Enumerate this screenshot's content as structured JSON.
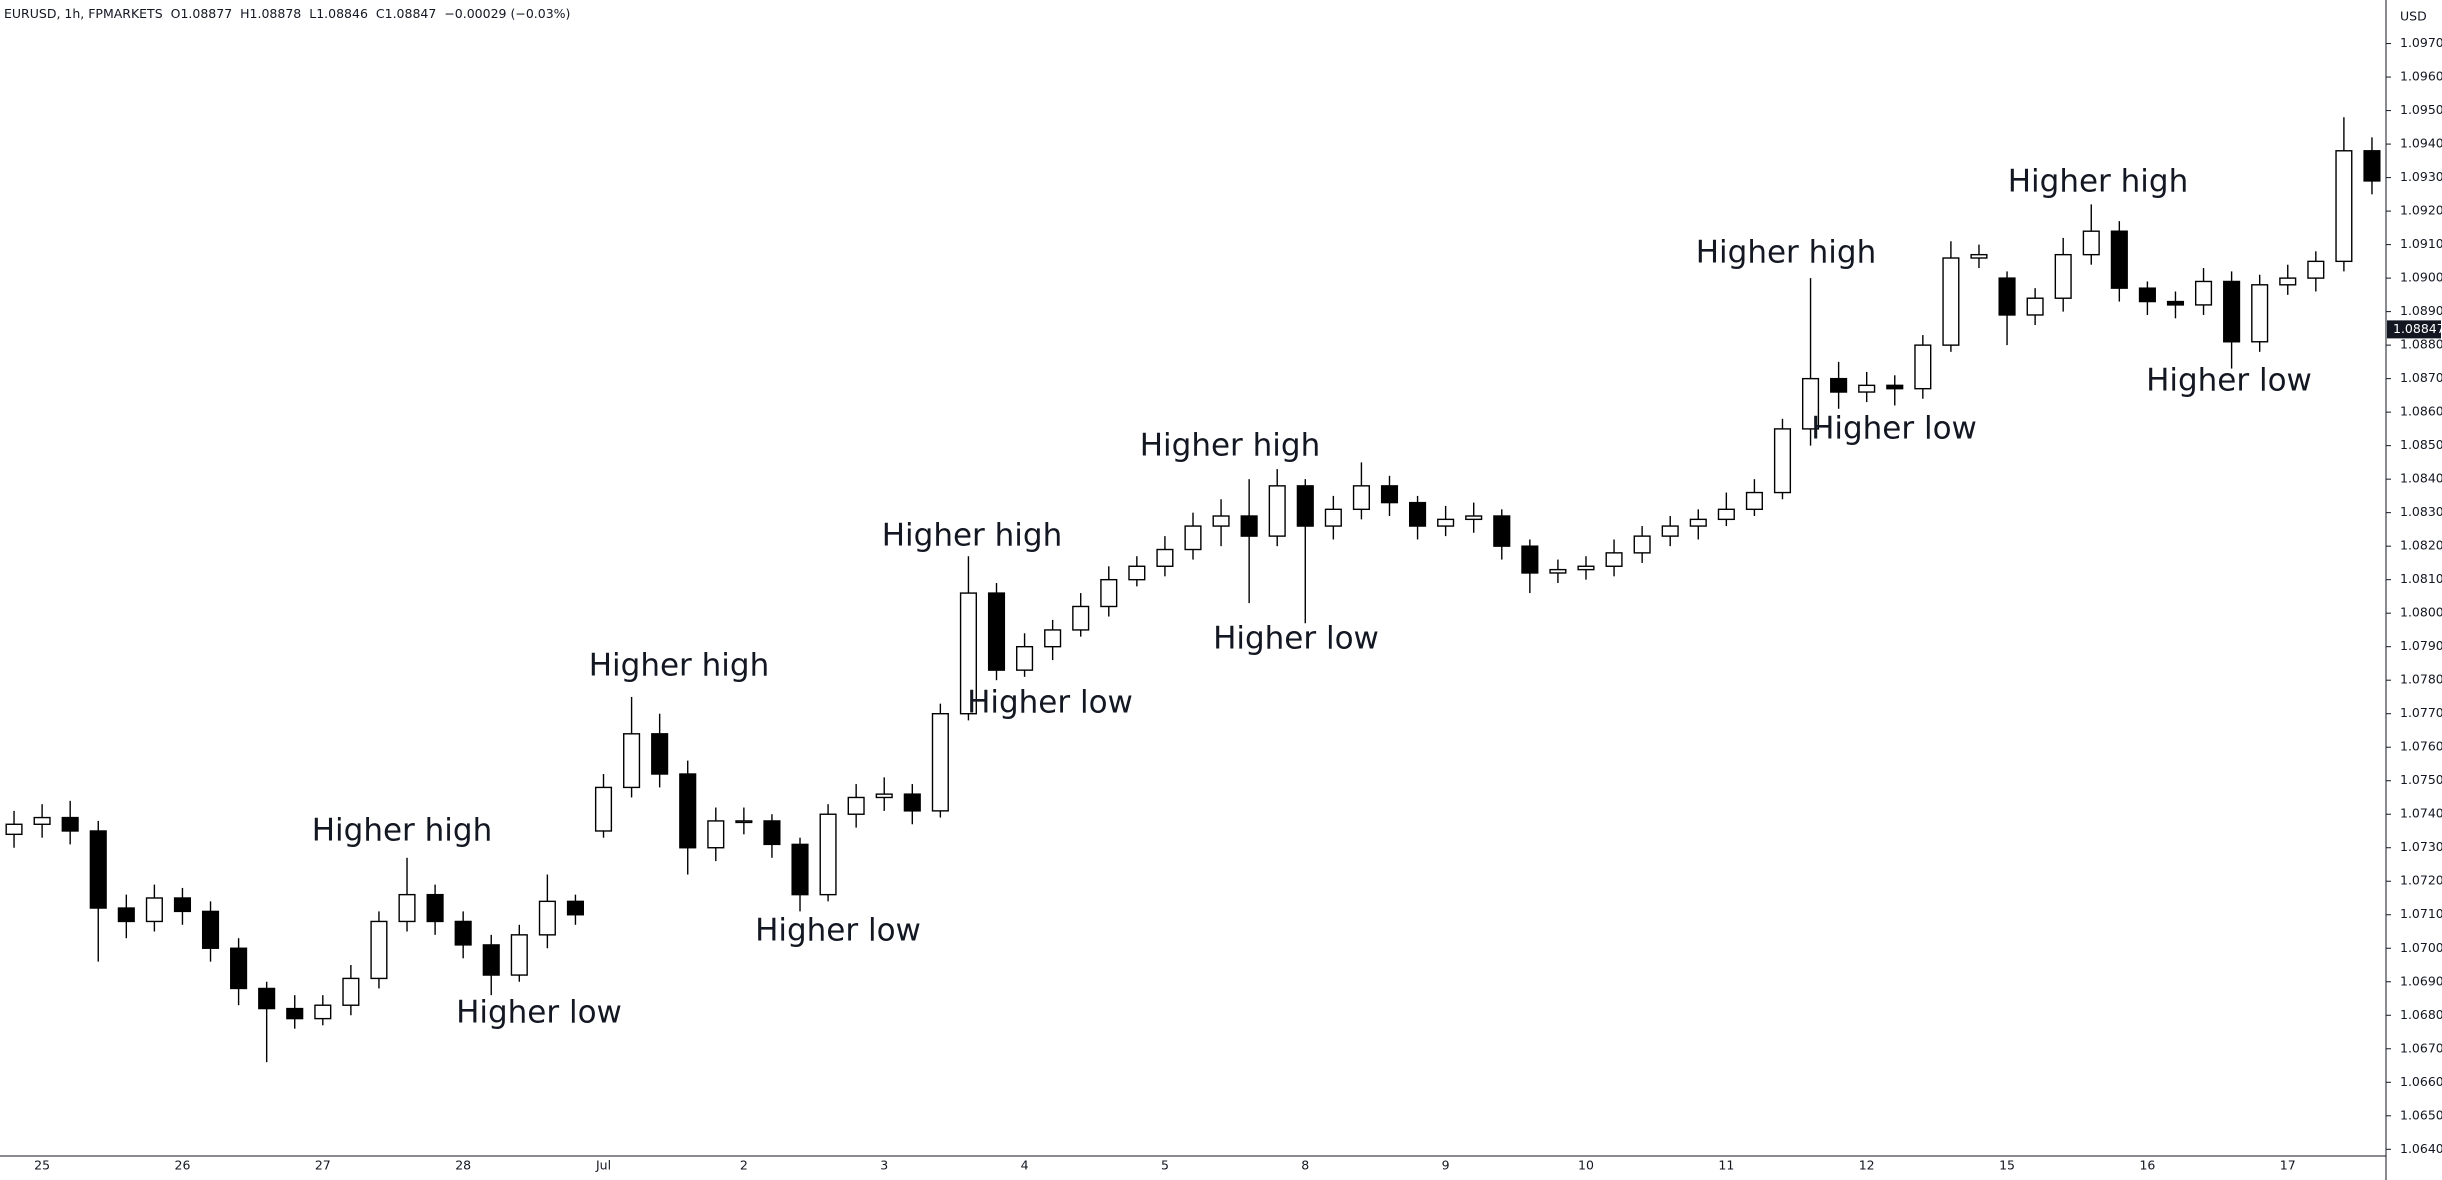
{
  "chart_data": {
    "type": "candlestick",
    "title": "EURUSD, 1h, FPMARKETS",
    "legend_values": [
      "O1.08877",
      "H1.08878",
      "L1.08846",
      "C1.08847",
      "−0.00029 (−0.03%)"
    ],
    "currency": "USD",
    "last_price": 1.08847,
    "up_color": "#ffffff",
    "down_color": "#000000",
    "ylim": [
      1.0638,
      1.0983
    ],
    "yticks": [
      {
        "value": 1.064,
        "label": "1.06400"
      },
      {
        "value": 1.065,
        "label": "1.06500"
      },
      {
        "value": 1.066,
        "label": "1.06600"
      },
      {
        "value": 1.067,
        "label": "1.06700"
      },
      {
        "value": 1.068,
        "label": "1.06800"
      },
      {
        "value": 1.069,
        "label": "1.06900"
      },
      {
        "value": 1.07,
        "label": "1.07000"
      },
      {
        "value": 1.071,
        "label": "1.07100"
      },
      {
        "value": 1.072,
        "label": "1.07200"
      },
      {
        "value": 1.073,
        "label": "1.07300"
      },
      {
        "value": 1.074,
        "label": "1.07400"
      },
      {
        "value": 1.075,
        "label": "1.07500"
      },
      {
        "value": 1.076,
        "label": "1.07600"
      },
      {
        "value": 1.077,
        "label": "1.07700"
      },
      {
        "value": 1.078,
        "label": "1.07800"
      },
      {
        "value": 1.079,
        "label": "1.07900"
      },
      {
        "value": 1.08,
        "label": "1.08000"
      },
      {
        "value": 1.081,
        "label": "1.08100"
      },
      {
        "value": 1.082,
        "label": "1.08200"
      },
      {
        "value": 1.083,
        "label": "1.08300"
      },
      {
        "value": 1.084,
        "label": "1.08400"
      },
      {
        "value": 1.085,
        "label": "1.08500"
      },
      {
        "value": 1.086,
        "label": "1.08600"
      },
      {
        "value": 1.087,
        "label": "1.08700"
      },
      {
        "value": 1.088,
        "label": "1.08800"
      },
      {
        "value": 1.089,
        "label": "1.08900"
      },
      {
        "value": 1.09,
        "label": "1.09000"
      },
      {
        "value": 1.091,
        "label": "1.09100"
      },
      {
        "value": 1.092,
        "label": "1.09200"
      },
      {
        "value": 1.093,
        "label": "1.09300"
      },
      {
        "value": 1.094,
        "label": "1.09400"
      },
      {
        "value": 1.095,
        "label": "1.09500"
      },
      {
        "value": 1.096,
        "label": "1.09600"
      },
      {
        "value": 1.097,
        "label": "1.09700"
      }
    ],
    "categories": [
      null,
      "25",
      null,
      null,
      null,
      null,
      "26",
      null,
      null,
      null,
      null,
      "27",
      null,
      null,
      null,
      null,
      "28",
      null,
      null,
      null,
      null,
      "Jul",
      null,
      null,
      null,
      null,
      "2",
      null,
      null,
      null,
      null,
      "3",
      null,
      null,
      null,
      null,
      "4",
      null,
      null,
      null,
      null,
      "5",
      null,
      null,
      null,
      null,
      "8",
      null,
      null,
      null,
      null,
      "9",
      null,
      null,
      null,
      null,
      "10",
      null,
      null,
      null,
      null,
      "11",
      null,
      null,
      null,
      null,
      "12",
      null,
      null,
      null,
      null,
      "15",
      null,
      null,
      null,
      null,
      "16",
      null,
      null,
      null,
      null,
      "17",
      null,
      null,
      null
    ],
    "open": [
      1.0734,
      1.0737,
      1.0739,
      1.0735,
      1.0712,
      1.0708,
      1.0715,
      1.0711,
      1.07,
      1.0688,
      1.0682,
      1.0679,
      1.0683,
      1.0691,
      1.0708,
      1.0716,
      1.0708,
      1.0701,
      1.0692,
      1.0704,
      1.0714,
      1.0735,
      1.0748,
      1.0764,
      1.0752,
      1.073,
      1.0738,
      1.0738,
      1.0731,
      1.0716,
      1.074,
      1.0745,
      1.0746,
      1.0741,
      1.077,
      1.0806,
      1.0783,
      1.079,
      1.0795,
      1.0802,
      1.081,
      1.0814,
      1.0819,
      1.0826,
      1.0829,
      1.0823,
      1.0838,
      1.0826,
      1.0831,
      1.0838,
      1.0833,
      1.0826,
      1.0828,
      1.0829,
      1.082,
      1.0812,
      1.0813,
      1.0814,
      1.0818,
      1.0823,
      1.0826,
      1.0828,
      1.0831,
      1.0836,
      1.0855,
      1.087,
      1.0866,
      1.0868,
      1.0867,
      1.088,
      1.0906,
      1.09,
      1.0889,
      1.0894,
      1.0907,
      1.0914,
      1.0897,
      1.0893,
      1.0892,
      1.0899,
      1.0881,
      1.0898,
      1.09,
      1.0905,
      1.0938
    ],
    "high": [
      1.0741,
      1.0743,
      1.0744,
      1.0738,
      1.0716,
      1.0719,
      1.0718,
      1.0714,
      1.0703,
      1.069,
      1.0686,
      1.0686,
      1.0695,
      1.0711,
      1.0727,
      1.0719,
      1.0711,
      1.0704,
      1.0707,
      1.0722,
      1.0716,
      1.0752,
      1.0775,
      1.077,
      1.0756,
      1.0742,
      1.0742,
      1.074,
      1.0733,
      1.0743,
      1.0749,
      1.0751,
      1.0749,
      1.0773,
      1.0817,
      1.0809,
      1.0794,
      1.0798,
      1.0806,
      1.0814,
      1.0817,
      1.0823,
      1.083,
      1.0834,
      1.084,
      1.0843,
      1.084,
      1.0835,
      1.0845,
      1.0841,
      1.0835,
      1.0832,
      1.0833,
      1.0831,
      1.0822,
      1.0816,
      1.0817,
      1.0822,
      1.0826,
      1.0829,
      1.0831,
      1.0836,
      1.084,
      1.0858,
      1.09,
      1.0875,
      1.0872,
      1.0871,
      1.0883,
      1.0911,
      1.091,
      1.0902,
      1.0897,
      1.0912,
      1.0922,
      1.0917,
      1.0899,
      1.0896,
      1.0903,
      1.0902,
      1.0901,
      1.0904,
      1.0908,
      1.0948,
      1.0942
    ],
    "low": [
      1.073,
      1.0733,
      1.0731,
      1.0696,
      1.0703,
      1.0705,
      1.0707,
      1.0696,
      1.0683,
      1.0666,
      1.0676,
      1.0677,
      1.068,
      1.0688,
      1.0705,
      1.0704,
      1.0697,
      1.0686,
      1.069,
      1.07,
      1.0707,
      1.0733,
      1.0745,
      1.0748,
      1.0722,
      1.0726,
      1.0734,
      1.0727,
      1.0711,
      1.0714,
      1.0736,
      1.0741,
      1.0737,
      1.0739,
      1.0768,
      1.078,
      1.0781,
      1.0786,
      1.0793,
      1.0799,
      1.0808,
      1.0811,
      1.0816,
      1.082,
      1.0803,
      1.082,
      1.0797,
      1.0822,
      1.0828,
      1.0829,
      1.0822,
      1.0823,
      1.0824,
      1.0816,
      1.0806,
      1.0809,
      1.081,
      1.0811,
      1.0815,
      1.082,
      1.0822,
      1.0826,
      1.0829,
      1.0834,
      1.085,
      1.0861,
      1.0863,
      1.0862,
      1.0864,
      1.0878,
      1.0903,
      1.088,
      1.0886,
      1.089,
      1.0904,
      1.0893,
      1.0889,
      1.0888,
      1.0889,
      1.0873,
      1.0878,
      1.0895,
      1.0896,
      1.0902,
      1.0925
    ],
    "close": [
      1.0737,
      1.0739,
      1.0735,
      1.0712,
      1.0708,
      1.0715,
      1.0711,
      1.07,
      1.0688,
      1.0682,
      1.0679,
      1.0683,
      1.0691,
      1.0708,
      1.0716,
      1.0708,
      1.0701,
      1.0692,
      1.0704,
      1.0714,
      1.071,
      1.0748,
      1.0764,
      1.0752,
      1.073,
      1.0738,
      1.0738,
      1.0731,
      1.0716,
      1.074,
      1.0745,
      1.0746,
      1.0741,
      1.077,
      1.0806,
      1.0783,
      1.079,
      1.0795,
      1.0802,
      1.081,
      1.0814,
      1.0819,
      1.0826,
      1.0829,
      1.0823,
      1.0838,
      1.0826,
      1.0831,
      1.0838,
      1.0833,
      1.0826,
      1.0828,
      1.0829,
      1.082,
      1.0812,
      1.0813,
      1.0814,
      1.0818,
      1.0823,
      1.0826,
      1.0828,
      1.0831,
      1.0836,
      1.0855,
      1.087,
      1.0866,
      1.0868,
      1.0867,
      1.088,
      1.0906,
      1.0907,
      1.0889,
      1.0894,
      1.0907,
      1.0914,
      1.0897,
      1.0893,
      1.0892,
      1.0899,
      1.0881,
      1.0898,
      1.09,
      1.0905,
      1.0938,
      1.0929
    ],
    "annotations": [
      "Higher high",
      "Higher low",
      "Higher high",
      "Higher low",
      "Higher high",
      "Higher low",
      "Higher high",
      "Higher low",
      "Higher high",
      "Higher low",
      "Higher high",
      "Higher low"
    ]
  }
}
